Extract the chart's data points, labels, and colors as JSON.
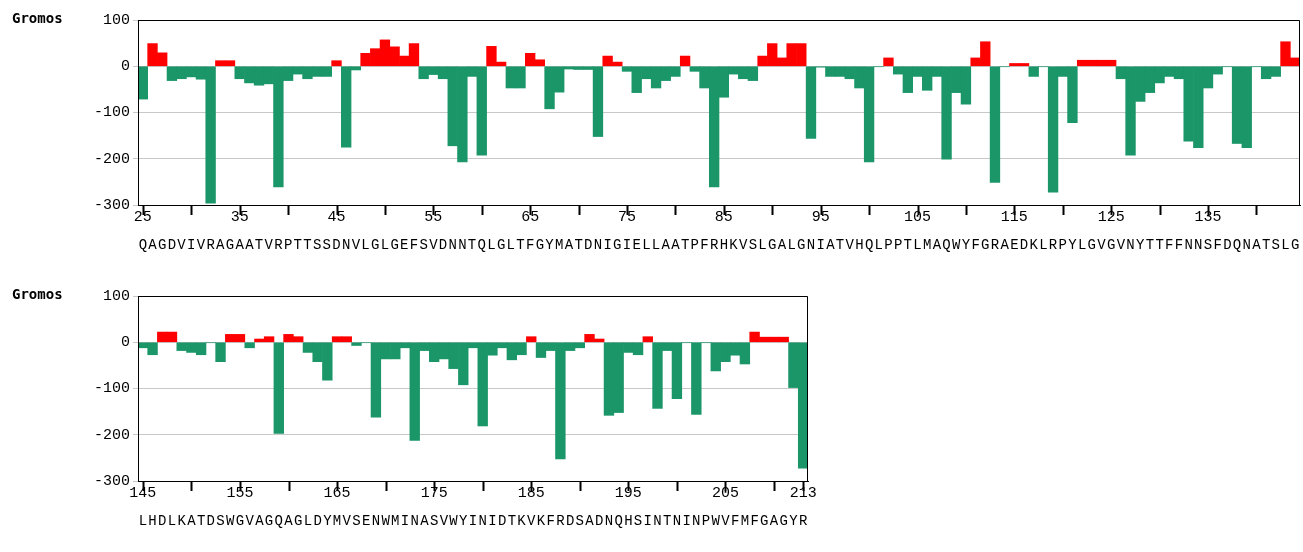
{
  "chart_data": [
    {
      "type": "bar",
      "ylabel": "Gromos",
      "grid": "y",
      "x": [
        25,
        26,
        27,
        28,
        29,
        30,
        31,
        32,
        33,
        34,
        35,
        36,
        37,
        38,
        39,
        40,
        41,
        42,
        43,
        44,
        45,
        46,
        47,
        48,
        49,
        50,
        51,
        52,
        53,
        54,
        55,
        56,
        57,
        58,
        59,
        60,
        61,
        62,
        63,
        64,
        65,
        66,
        67,
        68,
        69,
        70,
        71,
        72,
        73,
        74,
        75,
        76,
        77,
        78,
        79,
        80,
        81,
        82,
        83,
        84,
        85,
        86,
        87,
        88,
        89,
        90,
        91,
        92,
        93,
        94,
        95,
        96,
        97,
        98,
        99,
        100,
        101,
        102,
        103,
        104,
        105,
        106,
        107,
        108,
        109,
        110,
        111,
        112,
        113,
        114,
        115,
        116,
        117,
        118,
        119,
        120,
        121,
        122,
        123,
        124,
        125,
        126,
        127,
        128,
        129,
        130,
        131,
        132,
        133,
        134,
        135,
        136,
        137,
        138,
        139,
        140,
        141,
        142,
        143,
        144
      ],
      "values": [
        -71,
        49,
        29,
        -31,
        -27,
        -23,
        -28,
        -296,
        12,
        12,
        -27,
        -36,
        -41,
        -38,
        -261,
        -31,
        -17,
        -27,
        -22,
        -22,
        12,
        -175,
        -8,
        28,
        38,
        57,
        42,
        22,
        49,
        -27,
        -18,
        -27,
        -172,
        -207,
        -22,
        -192,
        43,
        9,
        -47,
        -47,
        28,
        14,
        -92,
        -56,
        -6,
        -7,
        -7,
        -152,
        22,
        9,
        -11,
        -57,
        -27,
        -47,
        -31,
        -22,
        22,
        -11,
        -47,
        -261,
        -67,
        -17,
        -27,
        -31,
        22,
        49,
        18,
        49,
        49,
        -156,
        -2,
        -22,
        -22,
        -27,
        -47,
        -207,
        -1,
        18,
        -17,
        -57,
        -22,
        -52,
        -22,
        -201,
        -57,
        -82,
        18,
        53,
        -251,
        -1,
        6,
        6,
        -22,
        -1,
        -272,
        -22,
        -122,
        13,
        13,
        13,
        13,
        -27,
        -192,
        -76,
        -57,
        -36,
        -22,
        -27,
        -162,
        -176,
        -47,
        -17,
        -1,
        -167,
        -176,
        -1,
        -27,
        -22,
        53,
        18
      ],
      "colors": [
        "#1a9668",
        "#ff0000",
        "#ff0000",
        "#1a9668",
        "#1a9668",
        "#1a9668",
        "#1a9668",
        "#1a9668",
        "#ff0000",
        "#ff0000",
        "#1a9668",
        "#1a9668",
        "#1a9668",
        "#1a9668",
        "#1a9668",
        "#1a9668",
        "#1a9668",
        "#1a9668",
        "#1a9668",
        "#1a9668",
        "#ff0000",
        "#1a9668",
        "#1a9668",
        "#ff0000",
        "#ff0000",
        "#ff0000",
        "#ff0000",
        "#ff0000",
        "#ff0000",
        "#1a9668",
        "#1a9668",
        "#1a9668",
        "#1a9668",
        "#1a9668",
        "#1a9668",
        "#1a9668",
        "#ff0000",
        "#ff0000",
        "#1a9668",
        "#1a9668",
        "#ff0000",
        "#ff0000",
        "#1a9668",
        "#1a9668",
        "#1a9668",
        "#1a9668",
        "#1a9668",
        "#1a9668",
        "#ff0000",
        "#ff0000",
        "#1a9668",
        "#1a9668",
        "#1a9668",
        "#1a9668",
        "#1a9668",
        "#1a9668",
        "#ff0000",
        "#1a9668",
        "#1a9668",
        "#1a9668",
        "#1a9668",
        "#1a9668",
        "#1a9668",
        "#1a9668",
        "#ff0000",
        "#ff0000",
        "#ff0000",
        "#ff0000",
        "#ff0000",
        "#1a9668",
        "#1a9668",
        "#1a9668",
        "#1a9668",
        "#1a9668",
        "#1a9668",
        "#1a9668",
        "#1a9668",
        "#ff0000",
        "#1a9668",
        "#1a9668",
        "#1a9668",
        "#1a9668",
        "#1a9668",
        "#1a9668",
        "#1a9668",
        "#1a9668",
        "#ff0000",
        "#ff0000",
        "#1a9668",
        "#1a9668",
        "#ff0000",
        "#ff0000",
        "#1a9668",
        "#1a9668",
        "#1a9668",
        "#1a9668",
        "#1a9668",
        "#ff0000",
        "#ff0000",
        "#ff0000",
        "#ff0000",
        "#1a9668",
        "#1a9668",
        "#1a9668",
        "#1a9668",
        "#1a9668",
        "#1a9668",
        "#1a9668",
        "#1a9668",
        "#1a9668",
        "#1a9668",
        "#1a9668",
        "#1a9668",
        "#1a9668",
        "#1a9668",
        "#1a9668",
        "#1a9668",
        "#1a9668",
        "#ff0000",
        "#ff0000"
      ],
      "xlim": [
        24.5,
        144.5
      ],
      "xticks": [
        25,
        {
          "value": 30,
          "label": null
        },
        35,
        {
          "value": 40,
          "label": null
        },
        45,
        {
          "value": 50,
          "label": null
        },
        55,
        {
          "value": 60,
          "label": null
        },
        65,
        {
          "value": 70,
          "label": null
        },
        75,
        {
          "value": 80,
          "label": null
        },
        85,
        {
          "value": 90,
          "label": null
        },
        95,
        {
          "value": 100,
          "label": null
        },
        105,
        {
          "value": 110,
          "label": null
        },
        115,
        {
          "value": 120,
          "label": null
        },
        125,
        {
          "value": 130,
          "label": null
        },
        135,
        {
          "value": 140,
          "label": null
        }
      ],
      "ylim": [
        -300,
        100
      ],
      "yticks": [
        -300,
        -200,
        -100,
        0,
        100
      ],
      "annotations": [
        "QAGDVIVRAGAATVRPTTSSDNVLGLGEFSVDNNTQLGLTFGYMATDNIGIELLAATPFRHKVSLGALGNIATVHQLPPTLMAQWYFGRAEDKLRPYLGVGVNYTTFFNNSFDQNATSLG"
      ]
    },
    {
      "type": "bar",
      "ylabel": "Gromos",
      "grid": "y",
      "x": [
        145,
        146,
        147,
        148,
        149,
        150,
        151,
        152,
        153,
        154,
        155,
        156,
        157,
        158,
        159,
        160,
        161,
        162,
        163,
        164,
        165,
        166,
        167,
        168,
        169,
        170,
        171,
        172,
        173,
        174,
        175,
        176,
        177,
        178,
        179,
        180,
        181,
        182,
        183,
        184,
        185,
        186,
        187,
        188,
        189,
        190,
        191,
        192,
        193,
        194,
        195,
        196,
        197,
        198,
        199,
        200,
        201,
        202,
        203,
        204,
        205,
        206,
        207,
        208,
        209,
        210,
        211,
        212,
        213
      ],
      "values": [
        -12,
        -27,
        22,
        22,
        -18,
        -22,
        -27,
        -1,
        -42,
        17,
        17,
        -12,
        7,
        12,
        -197,
        17,
        12,
        -22,
        -42,
        -82,
        12,
        12,
        -7,
        -1,
        -162,
        -36,
        -36,
        -12,
        -212,
        -18,
        -42,
        -36,
        -57,
        -92,
        -12,
        -181,
        -28,
        -12,
        -38,
        -27,
        12,
        -33,
        -18,
        -252,
        -18,
        -12,
        17,
        7,
        -158,
        -152,
        -22,
        -27,
        12,
        -143,
        -18,
        -122,
        -1,
        -156,
        -1,
        -62,
        -42,
        -28,
        -47,
        22,
        11,
        11,
        11,
        -98,
        -272
      ],
      "colors": [
        "#1a9668",
        "#1a9668",
        "#ff0000",
        "#ff0000",
        "#1a9668",
        "#1a9668",
        "#1a9668",
        "#1a9668",
        "#1a9668",
        "#ff0000",
        "#ff0000",
        "#1a9668",
        "#ff0000",
        "#ff0000",
        "#1a9668",
        "#ff0000",
        "#ff0000",
        "#1a9668",
        "#1a9668",
        "#1a9668",
        "#ff0000",
        "#ff0000",
        "#1a9668",
        "#1a9668",
        "#1a9668",
        "#1a9668",
        "#1a9668",
        "#1a9668",
        "#1a9668",
        "#1a9668",
        "#1a9668",
        "#1a9668",
        "#1a9668",
        "#1a9668",
        "#1a9668",
        "#1a9668",
        "#1a9668",
        "#1a9668",
        "#1a9668",
        "#1a9668",
        "#ff0000",
        "#1a9668",
        "#1a9668",
        "#1a9668",
        "#1a9668",
        "#1a9668",
        "#ff0000",
        "#ff0000",
        "#1a9668",
        "#1a9668",
        "#1a9668",
        "#1a9668",
        "#ff0000",
        "#1a9668",
        "#1a9668",
        "#1a9668",
        "#1a9668",
        "#1a9668",
        "#1a9668",
        "#1a9668",
        "#1a9668",
        "#1a9668",
        "#1a9668",
        "#ff0000",
        "#ff0000",
        "#ff0000",
        "#ff0000",
        "#1a9668",
        "#1a9668"
      ],
      "xlim": [
        144.5,
        213.5
      ],
      "xticks": [
        145,
        {
          "value": 150,
          "label": null
        },
        155,
        {
          "value": 160,
          "label": null
        },
        165,
        {
          "value": 170,
          "label": null
        },
        175,
        {
          "value": 180,
          "label": null
        },
        185,
        {
          "value": 190,
          "label": null
        },
        195,
        {
          "value": 200,
          "label": null
        },
        205,
        {
          "value": 210,
          "label": null
        },
        213
      ],
      "ylim": [
        -300,
        100
      ],
      "yticks": [
        -300,
        -200,
        -100,
        0,
        100
      ],
      "annotations": [
        "LHDLKATDSWGVAGQAGLDYMVSENWMINASVWYINIDTKVKFRDSADNQHSINTNINPWVFMFGAGYR"
      ]
    }
  ]
}
